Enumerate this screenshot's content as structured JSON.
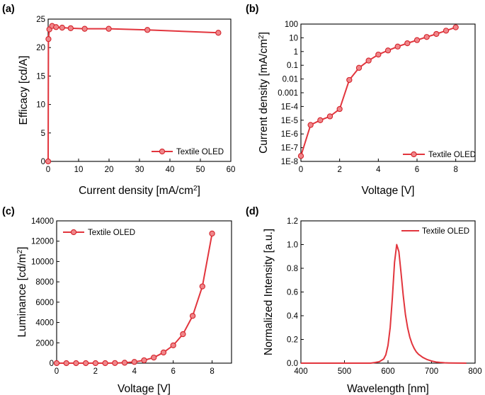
{
  "chart_data": [
    {
      "id": "a",
      "type": "line",
      "panel_label": "(a)",
      "xlabel": "Current density [mA/cm²]",
      "ylabel": "Efficacy [cd/A]",
      "xscale": "linear",
      "yscale": "linear",
      "xlim": [
        0,
        60
      ],
      "ylim": [
        0,
        25
      ],
      "xticks": [
        0,
        10,
        20,
        30,
        40,
        50,
        60
      ],
      "yticks": [
        0,
        5,
        10,
        15,
        20,
        25
      ],
      "xtick_labels": [
        "0",
        "10",
        "20",
        "30",
        "40",
        "50",
        "60"
      ],
      "ytick_labels": [
        "0",
        "5",
        "10",
        "15",
        "20",
        "25"
      ],
      "legend_position": "bottom-right",
      "series": [
        {
          "name": "Textile OLED",
          "x": [
            0.0,
            0.1,
            0.4,
            1.3,
            2.6,
            4.6,
            7.4,
            12.0,
            19.9,
            32.6,
            55.9
          ],
          "y": [
            0.0,
            21.5,
            23.2,
            23.8,
            23.6,
            23.5,
            23.4,
            23.3,
            23.3,
            23.1,
            22.6
          ]
        }
      ]
    },
    {
      "id": "b",
      "type": "line",
      "panel_label": "(b)",
      "xlabel": "Voltage [V]",
      "ylabel": "Current density [mA/cm²]",
      "xscale": "linear",
      "yscale": "log",
      "xlim": [
        0,
        9
      ],
      "ylim": [
        1e-08,
        100
      ],
      "xticks": [
        0,
        2,
        4,
        6,
        8
      ],
      "xtick_labels": [
        "0",
        "2",
        "4",
        "6",
        "8"
      ],
      "yticks": [
        1e-08,
        1e-07,
        1e-06,
        1e-05,
        0.0001,
        0.001,
        0.01,
        0.1,
        1,
        10,
        100
      ],
      "ytick_labels": [
        "1E-8",
        "1E-7",
        "1E-6",
        "1E-5",
        "1E-4",
        "0.001",
        "0.01",
        "0.1",
        "1",
        "10",
        "100"
      ],
      "legend_position": "bottom-right",
      "series": [
        {
          "name": "Textile OLED",
          "x": [
            0,
            0.5,
            1,
            1.5,
            2,
            2.5,
            3,
            3.5,
            4,
            4.5,
            5,
            5.5,
            6,
            6.5,
            7,
            7.5,
            8
          ],
          "y": [
            2.5e-08,
            4.5e-06,
            1e-05,
            1.9e-05,
            6.5e-05,
            0.0085,
            0.065,
            0.22,
            0.6,
            1.2,
            2.3,
            4.0,
            6.8,
            11.5,
            19,
            33,
            58
          ]
        }
      ]
    },
    {
      "id": "c",
      "type": "line",
      "panel_label": "(c)",
      "xlabel": "Voltage [V]",
      "ylabel": "Luminance [cd/m²]",
      "xscale": "linear",
      "yscale": "linear",
      "xlim": [
        0,
        9
      ],
      "ylim": [
        0,
        14000
      ],
      "xticks": [
        0,
        2,
        4,
        6,
        8
      ],
      "xtick_labels": [
        "0",
        "2",
        "4",
        "6",
        "8"
      ],
      "yticks": [
        0,
        2000,
        4000,
        6000,
        8000,
        10000,
        12000,
        14000
      ],
      "ytick_labels": [
        "0",
        "2000",
        "4000",
        "6000",
        "8000",
        "10000",
        "12000",
        "14000"
      ],
      "legend_position": "top-left",
      "series": [
        {
          "name": "Textile OLED",
          "x": [
            0,
            0.5,
            1,
            1.5,
            2,
            2.5,
            3,
            3.5,
            4,
            4.5,
            5,
            5.5,
            6,
            6.5,
            7,
            7.5,
            8
          ],
          "y": [
            0,
            0,
            0,
            0,
            0,
            0,
            10,
            40,
            120,
            280,
            550,
            1050,
            1750,
            2850,
            4650,
            7550,
            12750
          ]
        }
      ]
    },
    {
      "id": "d",
      "type": "line",
      "panel_label": "(d)",
      "xlabel": "Wavelength [nm]",
      "ylabel": "Normalized Intensity [a.u.]",
      "xscale": "linear",
      "yscale": "linear",
      "xlim": [
        400,
        800
      ],
      "ylim": [
        0,
        1.2
      ],
      "xticks": [
        400,
        500,
        600,
        700,
        800
      ],
      "xtick_labels": [
        "400",
        "500",
        "600",
        "700",
        "800"
      ],
      "yticks": [
        0.0,
        0.2,
        0.4,
        0.6,
        0.8,
        1.0,
        1.2
      ],
      "ytick_labels": [
        "0.0",
        "0.2",
        "0.4",
        "0.6",
        "0.8",
        "1.0",
        "1.2"
      ],
      "legend_position": "top-right",
      "series": [
        {
          "name": "Textile OLED",
          "markers": false,
          "x": [
            400,
            560,
            570,
            580,
            590,
            595,
            600,
            605,
            610,
            615,
            620,
            625,
            630,
            635,
            640,
            645,
            650,
            655,
            660,
            665,
            670,
            680,
            690,
            700,
            710,
            720,
            730,
            740,
            760,
            780
          ],
          "y": [
            0.0,
            0.0,
            0.005,
            0.012,
            0.035,
            0.07,
            0.15,
            0.3,
            0.55,
            0.85,
            1.0,
            0.94,
            0.76,
            0.57,
            0.41,
            0.3,
            0.22,
            0.165,
            0.125,
            0.095,
            0.075,
            0.048,
            0.03,
            0.018,
            0.01,
            0.006,
            0.003,
            0.0015,
            0.0005,
            0.0
          ]
        }
      ]
    }
  ]
}
